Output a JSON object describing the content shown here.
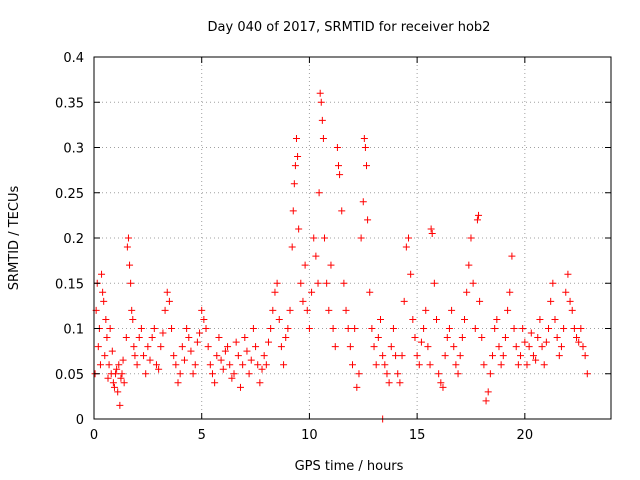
{
  "chart_data": {
    "type": "scatter",
    "title": "Day 040 of 2017, SRMTID for receiver hob2",
    "xlabel": "GPS time / hours",
    "ylabel": "SRMTID / TECUs",
    "xlim": [
      0,
      24
    ],
    "ylim": [
      0,
      0.4
    ],
    "xticks": [
      0,
      5,
      10,
      15,
      20
    ],
    "xtick_labels": [
      "0",
      "5",
      "10",
      "15",
      "20"
    ],
    "yticks": [
      0,
      0.05,
      0.1,
      0.15,
      0.2,
      0.25,
      0.3,
      0.35,
      0.4
    ],
    "ytick_labels": [
      "0",
      "0.05",
      "0.1",
      "0.15",
      "0.2",
      "0.25",
      "0.3",
      "0.35",
      "0.4"
    ],
    "grid": true,
    "marker_color": "#ff0000",
    "series": [
      {
        "name": "SRMTID hob2",
        "marker": "plus",
        "points": [
          [
            0.05,
            0.05
          ],
          [
            0.1,
            0.12
          ],
          [
            0.15,
            0.15
          ],
          [
            0.2,
            0.08
          ],
          [
            0.25,
            0.1
          ],
          [
            0.3,
            0.06
          ],
          [
            0.35,
            0.16
          ],
          [
            0.4,
            0.14
          ],
          [
            0.45,
            0.13
          ],
          [
            0.5,
            0.07
          ],
          [
            0.55,
            0.11
          ],
          [
            0.6,
            0.09
          ],
          [
            0.65,
            0.045
          ],
          [
            0.7,
            0.06
          ],
          [
            0.75,
            0.1
          ],
          [
            0.8,
            0.05
          ],
          [
            0.85,
            0.075
          ],
          [
            0.9,
            0.04
          ],
          [
            0.95,
            0.035
          ],
          [
            1.0,
            0.05
          ],
          [
            1.05,
            0.055
          ],
          [
            1.1,
            0.03
          ],
          [
            1.15,
            0.06
          ],
          [
            1.2,
            0.015
          ],
          [
            1.25,
            0.045
          ],
          [
            1.3,
            0.05
          ],
          [
            1.35,
            0.065
          ],
          [
            1.4,
            0.04
          ],
          [
            1.5,
            0.09
          ],
          [
            1.55,
            0.19
          ],
          [
            1.6,
            0.2
          ],
          [
            1.65,
            0.17
          ],
          [
            1.7,
            0.15
          ],
          [
            1.75,
            0.12
          ],
          [
            1.8,
            0.11
          ],
          [
            1.85,
            0.08
          ],
          [
            1.9,
            0.07
          ],
          [
            2.0,
            0.06
          ],
          [
            2.1,
            0.09
          ],
          [
            2.2,
            0.1
          ],
          [
            2.3,
            0.07
          ],
          [
            2.4,
            0.05
          ],
          [
            2.5,
            0.08
          ],
          [
            2.6,
            0.065
          ],
          [
            2.7,
            0.09
          ],
          [
            2.8,
            0.1
          ],
          [
            2.9,
            0.06
          ],
          [
            3.0,
            0.055
          ],
          [
            3.1,
            0.08
          ],
          [
            3.2,
            0.095
          ],
          [
            3.3,
            0.12
          ],
          [
            3.4,
            0.14
          ],
          [
            3.5,
            0.13
          ],
          [
            3.6,
            0.1
          ],
          [
            3.7,
            0.07
          ],
          [
            3.8,
            0.06
          ],
          [
            3.9,
            0.04
          ],
          [
            4.0,
            0.05
          ],
          [
            4.1,
            0.08
          ],
          [
            4.2,
            0.065
          ],
          [
            4.3,
            0.1
          ],
          [
            4.4,
            0.09
          ],
          [
            4.5,
            0.075
          ],
          [
            4.6,
            0.05
          ],
          [
            4.7,
            0.06
          ],
          [
            4.8,
            0.085
          ],
          [
            4.9,
            0.095
          ],
          [
            5.0,
            0.12
          ],
          [
            5.1,
            0.11
          ],
          [
            5.2,
            0.1
          ],
          [
            5.3,
            0.08
          ],
          [
            5.4,
            0.06
          ],
          [
            5.5,
            0.05
          ],
          [
            5.6,
            0.04
          ],
          [
            5.7,
            0.07
          ],
          [
            5.8,
            0.09
          ],
          [
            5.9,
            0.065
          ],
          [
            6.0,
            0.055
          ],
          [
            6.1,
            0.075
          ],
          [
            6.2,
            0.08
          ],
          [
            6.3,
            0.06
          ],
          [
            6.4,
            0.045
          ],
          [
            6.5,
            0.05
          ],
          [
            6.6,
            0.085
          ],
          [
            6.7,
            0.07
          ],
          [
            6.8,
            0.035
          ],
          [
            6.9,
            0.06
          ],
          [
            7.0,
            0.09
          ],
          [
            7.1,
            0.075
          ],
          [
            7.2,
            0.05
          ],
          [
            7.3,
            0.065
          ],
          [
            7.4,
            0.1
          ],
          [
            7.5,
            0.08
          ],
          [
            7.6,
            0.06
          ],
          [
            7.7,
            0.04
          ],
          [
            7.8,
            0.055
          ],
          [
            7.9,
            0.07
          ],
          [
            8.0,
            0.06
          ],
          [
            8.1,
            0.085
          ],
          [
            8.2,
            0.1
          ],
          [
            8.3,
            0.12
          ],
          [
            8.4,
            0.14
          ],
          [
            8.5,
            0.15
          ],
          [
            8.6,
            0.11
          ],
          [
            8.7,
            0.08
          ],
          [
            8.8,
            0.06
          ],
          [
            8.9,
            0.09
          ],
          [
            9.0,
            0.1
          ],
          [
            9.1,
            0.12
          ],
          [
            9.2,
            0.19
          ],
          [
            9.25,
            0.23
          ],
          [
            9.3,
            0.26
          ],
          [
            9.35,
            0.28
          ],
          [
            9.4,
            0.31
          ],
          [
            9.45,
            0.29
          ],
          [
            9.5,
            0.21
          ],
          [
            9.6,
            0.15
          ],
          [
            9.7,
            0.13
          ],
          [
            9.8,
            0.17
          ],
          [
            9.9,
            0.12
          ],
          [
            10.0,
            0.1
          ],
          [
            10.1,
            0.14
          ],
          [
            10.2,
            0.2
          ],
          [
            10.3,
            0.18
          ],
          [
            10.4,
            0.15
          ],
          [
            10.45,
            0.25
          ],
          [
            10.5,
            0.36
          ],
          [
            10.55,
            0.35
          ],
          [
            10.6,
            0.33
          ],
          [
            10.65,
            0.31
          ],
          [
            10.7,
            0.2
          ],
          [
            10.8,
            0.15
          ],
          [
            10.9,
            0.12
          ],
          [
            11.0,
            0.17
          ],
          [
            11.1,
            0.1
          ],
          [
            11.2,
            0.08
          ],
          [
            11.3,
            0.3
          ],
          [
            11.35,
            0.28
          ],
          [
            11.4,
            0.27
          ],
          [
            11.5,
            0.23
          ],
          [
            11.6,
            0.15
          ],
          [
            11.7,
            0.12
          ],
          [
            11.8,
            0.1
          ],
          [
            11.9,
            0.08
          ],
          [
            12.0,
            0.06
          ],
          [
            12.1,
            0.1
          ],
          [
            12.2,
            0.035
          ],
          [
            12.3,
            0.05
          ],
          [
            12.4,
            0.2
          ],
          [
            12.5,
            0.24
          ],
          [
            12.55,
            0.31
          ],
          [
            12.6,
            0.3
          ],
          [
            12.65,
            0.28
          ],
          [
            12.7,
            0.22
          ],
          [
            12.8,
            0.14
          ],
          [
            12.9,
            0.1
          ],
          [
            13.0,
            0.08
          ],
          [
            13.1,
            0.06
          ],
          [
            13.2,
            0.09
          ],
          [
            13.3,
            0.11
          ],
          [
            13.4,
            0.07
          ],
          [
            13.5,
            0.06
          ],
          [
            13.6,
            0.05
          ],
          [
            13.7,
            0.04
          ],
          [
            13.8,
            0.08
          ],
          [
            13.9,
            0.1
          ],
          [
            14.0,
            0.07
          ],
          [
            14.1,
            0.05
          ],
          [
            14.2,
            0.04
          ],
          [
            14.3,
            0.07
          ],
          [
            14.4,
            0.13
          ],
          [
            14.5,
            0.19
          ],
          [
            14.6,
            0.2
          ],
          [
            14.7,
            0.16
          ],
          [
            14.8,
            0.11
          ],
          [
            14.9,
            0.09
          ],
          [
            15.0,
            0.07
          ],
          [
            15.1,
            0.06
          ],
          [
            15.2,
            0.085
          ],
          [
            15.3,
            0.1
          ],
          [
            15.4,
            0.12
          ],
          [
            15.5,
            0.08
          ],
          [
            15.6,
            0.06
          ],
          [
            15.65,
            0.21
          ],
          [
            15.7,
            0.205
          ],
          [
            15.8,
            0.15
          ],
          [
            15.9,
            0.11
          ],
          [
            16.0,
            0.05
          ],
          [
            16.1,
            0.04
          ],
          [
            16.2,
            0.035
          ],
          [
            16.3,
            0.07
          ],
          [
            16.4,
            0.09
          ],
          [
            16.5,
            0.1
          ],
          [
            16.6,
            0.12
          ],
          [
            16.7,
            0.08
          ],
          [
            16.8,
            0.06
          ],
          [
            16.9,
            0.05
          ],
          [
            17.0,
            0.07
          ],
          [
            17.1,
            0.09
          ],
          [
            17.2,
            0.11
          ],
          [
            17.3,
            0.14
          ],
          [
            17.4,
            0.17
          ],
          [
            17.5,
            0.2
          ],
          [
            17.6,
            0.15
          ],
          [
            17.7,
            0.1
          ],
          [
            17.8,
            0.22
          ],
          [
            17.85,
            0.225
          ],
          [
            17.9,
            0.13
          ],
          [
            18.0,
            0.09
          ],
          [
            18.1,
            0.06
          ],
          [
            18.2,
            0.02
          ],
          [
            18.3,
            0.03
          ],
          [
            18.4,
            0.05
          ],
          [
            18.5,
            0.07
          ],
          [
            18.6,
            0.1
          ],
          [
            18.7,
            0.11
          ],
          [
            18.8,
            0.08
          ],
          [
            18.9,
            0.06
          ],
          [
            19.0,
            0.07
          ],
          [
            19.1,
            0.09
          ],
          [
            19.2,
            0.12
          ],
          [
            19.3,
            0.14
          ],
          [
            19.4,
            0.18
          ],
          [
            19.5,
            0.1
          ],
          [
            19.6,
            0.08
          ],
          [
            19.7,
            0.06
          ],
          [
            19.8,
            0.07
          ],
          [
            19.9,
            0.1
          ],
          [
            20.0,
            0.085
          ],
          [
            20.1,
            0.06
          ],
          [
            20.2,
            0.08
          ],
          [
            20.3,
            0.095
          ],
          [
            20.4,
            0.07
          ],
          [
            20.5,
            0.065
          ],
          [
            20.6,
            0.09
          ],
          [
            20.7,
            0.11
          ],
          [
            20.8,
            0.08
          ],
          [
            20.9,
            0.06
          ],
          [
            21.0,
            0.085
          ],
          [
            21.1,
            0.1
          ],
          [
            21.2,
            0.13
          ],
          [
            21.3,
            0.15
          ],
          [
            21.4,
            0.11
          ],
          [
            21.5,
            0.09
          ],
          [
            21.6,
            0.07
          ],
          [
            21.7,
            0.08
          ],
          [
            21.8,
            0.1
          ],
          [
            21.9,
            0.14
          ],
          [
            22.0,
            0.16
          ],
          [
            22.1,
            0.13
          ],
          [
            22.2,
            0.12
          ],
          [
            22.3,
            0.1
          ],
          [
            22.4,
            0.09
          ],
          [
            22.5,
            0.085
          ],
          [
            22.6,
            0.1
          ],
          [
            22.7,
            0.08
          ],
          [
            22.8,
            0.07
          ],
          [
            22.9,
            0.05
          ],
          [
            13.4,
            0.0
          ]
        ]
      }
    ]
  }
}
